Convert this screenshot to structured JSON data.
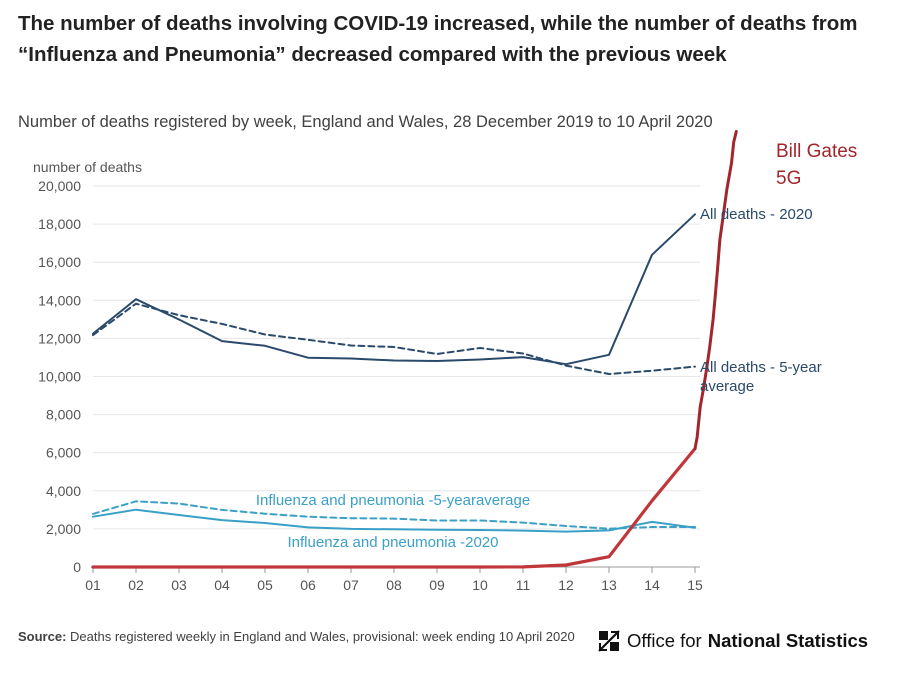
{
  "title": "The number of deaths involving COVID-19 increased, while the number of deaths from “Influenza and Pneumonia” decreased compared with the previous week",
  "subtitle": "Number of deaths registered by week, England and Wales, 28 December 2019 to 10 April 2020",
  "source": {
    "label": "Source:",
    "text": "Deaths registered weekly in England and Wales, provisional: week ending 10 April 2020"
  },
  "logo": {
    "text_regular": "Office for",
    "text_bold": "National Statistics",
    "icon": "ons-logo-icon"
  },
  "chart_data": {
    "type": "line",
    "ylabel": "number of deaths",
    "xlabel": "",
    "ylim": [
      0,
      20000
    ],
    "yticks": [
      0,
      2000,
      4000,
      6000,
      8000,
      10000,
      12000,
      14000,
      16000,
      18000,
      20000
    ],
    "ytick_labels": [
      "0",
      "2,000",
      "4,000",
      "6,000",
      "8,000",
      "10,000",
      "12,000",
      "14,000",
      "16,000",
      "18,000",
      "20,000"
    ],
    "x": [
      "01",
      "02",
      "03",
      "04",
      "05",
      "06",
      "07",
      "08",
      "09",
      "10",
      "11",
      "12",
      "13",
      "14",
      "15"
    ],
    "grid": "horizontal",
    "series": [
      {
        "name": "All deaths - 2020",
        "style": "solid",
        "color": "#2a4a6b",
        "values": [
          12254,
          14058,
          12990,
          11856,
          11612,
          10986,
          10944,
          10841,
          10816,
          10895,
          11019,
          10645,
          11141,
          16387,
          18516
        ]
      },
      {
        "name": "All deaths - 5-year average",
        "style": "dashed",
        "color": "#2a4a6b",
        "values": [
          12175,
          13822,
          13216,
          12760,
          12206,
          11925,
          11627,
          11548,
          11183,
          11498,
          11205,
          10573,
          10130,
          10305,
          10520
        ]
      },
      {
        "name": "Influenza and pneumonia -5-yearaverage",
        "style": "dashed",
        "color": "#3aa0c8",
        "values": [
          2790,
          3450,
          3330,
          3000,
          2800,
          2640,
          2560,
          2540,
          2440,
          2440,
          2330,
          2150,
          2010,
          2100,
          2100
        ]
      },
      {
        "name": "Influenza and pneumonia -2020",
        "style": "solid",
        "color": "#3aa0c8",
        "values": [
          2640,
          3010,
          2730,
          2460,
          2310,
          2080,
          2000,
          1980,
          1960,
          1940,
          1910,
          1860,
          1920,
          2370,
          2060
        ]
      },
      {
        "name": "",
        "style": "solid",
        "color": "#c0373b",
        "values": [
          0,
          0,
          0,
          0,
          0,
          0,
          0,
          0,
          0,
          0,
          3,
          103,
          539,
          3475,
          6213
        ]
      }
    ],
    "annotation": {
      "text": [
        "Bill Gates",
        "5G"
      ],
      "color": "#a2262c",
      "line": {
        "x": [
          15,
          15.05,
          15.12,
          15.2,
          15.27,
          15.34,
          15.42,
          15.47,
          15.53,
          15.58,
          15.66,
          15.74,
          15.85,
          15.9,
          15.96
        ],
        "y": [
          6213,
          6800,
          8400,
          9400,
          10400,
          11500,
          13000,
          14200,
          15800,
          17200,
          18500,
          19800,
          21200,
          22300,
          22860
        ]
      }
    }
  }
}
